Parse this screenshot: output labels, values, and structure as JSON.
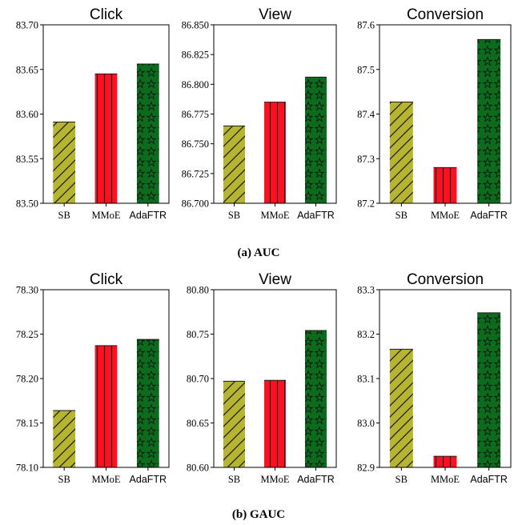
{
  "captions": [
    "(a) AUC",
    "(b) GAUC"
  ],
  "colors": {
    "SB": "#b5b531",
    "MMoE": "#ff1020",
    "AdaFTR": "#0c6b1c"
  },
  "hatches": {
    "SB": "diagonal-lines",
    "MMoE": "vertical-lines",
    "AdaFTR": "stars"
  },
  "chart_data": [
    {
      "type": "bar",
      "group": "(a) AUC",
      "title": "Click",
      "categories": [
        "SB",
        "MMoE",
        "AdaFTR"
      ],
      "values": [
        83.591,
        83.645,
        83.656
      ],
      "ylim": [
        83.5,
        83.7
      ],
      "yticks": [
        "83.50",
        "83.55",
        "83.60",
        "83.65",
        "83.70"
      ]
    },
    {
      "type": "bar",
      "group": "(a) AUC",
      "title": "View",
      "categories": [
        "SB",
        "MMoE",
        "AdaFTR"
      ],
      "values": [
        86.765,
        86.785,
        86.806
      ],
      "ylim": [
        86.7,
        86.85
      ],
      "yticks": [
        "86.700",
        "86.725",
        "86.750",
        "86.775",
        "86.800",
        "86.825",
        "86.850"
      ]
    },
    {
      "type": "bar",
      "group": "(a) AUC",
      "title": "Conversion",
      "categories": [
        "SB",
        "MMoE",
        "AdaFTR"
      ],
      "values": [
        87.427,
        87.28,
        87.567
      ],
      "ylim": [
        87.2,
        87.6
      ],
      "yticks": [
        "87.2",
        "87.3",
        "87.4",
        "87.5",
        "87.6"
      ]
    },
    {
      "type": "bar",
      "group": "(b) GAUC",
      "title": "Click",
      "categories": [
        "SB",
        "MMoE",
        "AdaFTR"
      ],
      "values": [
        78.164,
        78.237,
        78.244
      ],
      "ylim": [
        78.1,
        78.3
      ],
      "yticks": [
        "78.10",
        "78.15",
        "78.20",
        "78.25",
        "78.30"
      ]
    },
    {
      "type": "bar",
      "group": "(b) GAUC",
      "title": "View",
      "categories": [
        "SB",
        "MMoE",
        "AdaFTR"
      ],
      "values": [
        80.697,
        80.698,
        80.754
      ],
      "ylim": [
        80.6,
        80.8
      ],
      "yticks": [
        "80.60",
        "80.65",
        "80.70",
        "80.75",
        "80.80"
      ]
    },
    {
      "type": "bar",
      "group": "(b) GAUC",
      "title": "Conversion",
      "categories": [
        "SB",
        "MMoE",
        "AdaFTR"
      ],
      "values": [
        83.166,
        82.925,
        83.248
      ],
      "ylim": [
        82.9,
        83.3
      ],
      "yticks": [
        "82.9",
        "83.0",
        "83.1",
        "83.2",
        "83.3"
      ]
    }
  ]
}
